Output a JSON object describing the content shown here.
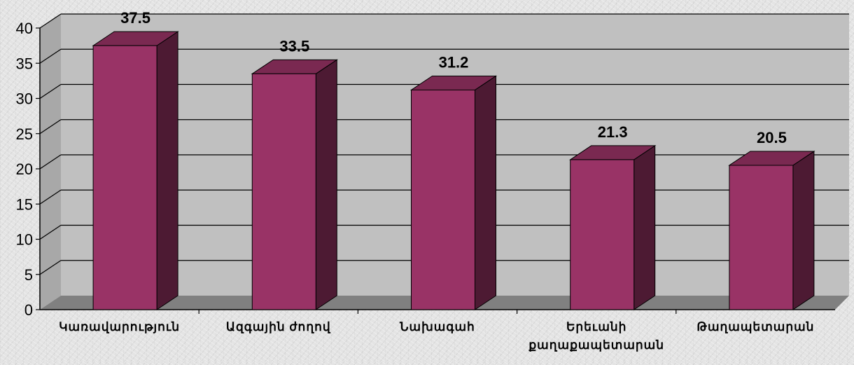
{
  "chart_data": {
    "type": "bar",
    "categories": [
      [
        "Կառավարություն"
      ],
      [
        "Ազգային ժողով"
      ],
      [
        "Նախագահ"
      ],
      [
        "Երեւանի",
        "քաղաքապետարան"
      ],
      [
        "Թաղապետարան"
      ]
    ],
    "values": [
      37.5,
      33.5,
      31.2,
      21.3,
      20.5
    ],
    "value_labels": [
      "37.5",
      "33.5",
      "31.2",
      "21.3",
      "20.5"
    ],
    "ylim": [
      0,
      40
    ],
    "yticks": [
      "0",
      "5",
      "10",
      "15",
      "20",
      "25",
      "30",
      "35",
      "40"
    ],
    "title": "",
    "xlabel": "",
    "ylabel": "",
    "grid": true,
    "legend": "none",
    "colors": {
      "bar_front": "#993366",
      "bar_side": "#4d1a33",
      "bar_top": "#7a2951",
      "wall": "#c0c0c0",
      "floor": "#808080",
      "gridline": "#000000"
    }
  }
}
